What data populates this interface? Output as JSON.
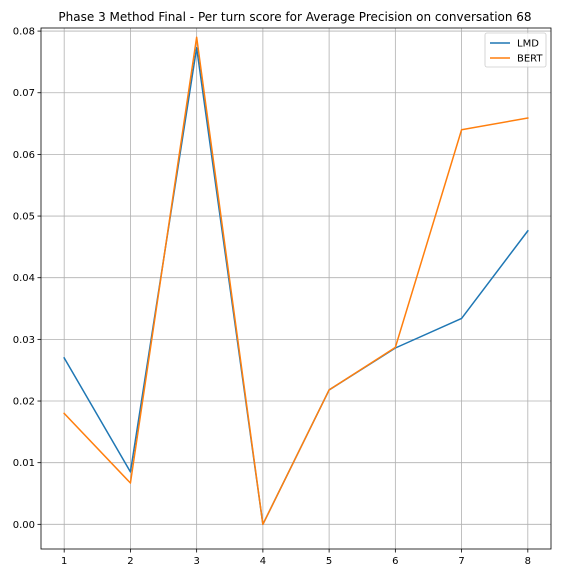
{
  "chart_data": {
    "type": "line",
    "title": "Phase 3 Method Final - Per turn score for Average Precision on conversation 68",
    "xlabel": "",
    "ylabel": "",
    "x": [
      1,
      2,
      3,
      4,
      5,
      6,
      7,
      8
    ],
    "xticks": [
      "1",
      "2",
      "3",
      "4",
      "5",
      "6",
      "7",
      "8"
    ],
    "yticks": [
      "0.00",
      "0.01",
      "0.02",
      "0.03",
      "0.04",
      "0.05",
      "0.06",
      "0.07",
      "0.08"
    ],
    "ylim": [
      -0.004,
      0.0805
    ],
    "xlim": [
      0.65,
      8.35
    ],
    "grid": true,
    "legend_position": "top-right",
    "series": [
      {
        "name": "LMD",
        "color": "#1f77b4",
        "values": [
          0.027,
          0.0085,
          0.0773,
          0.0,
          0.0218,
          0.0286,
          0.0334,
          0.0476
        ]
      },
      {
        "name": "BERT",
        "color": "#ff7f0e",
        "values": [
          0.018,
          0.0067,
          0.079,
          0.0,
          0.0218,
          0.0287,
          0.064,
          0.0659
        ]
      }
    ]
  }
}
